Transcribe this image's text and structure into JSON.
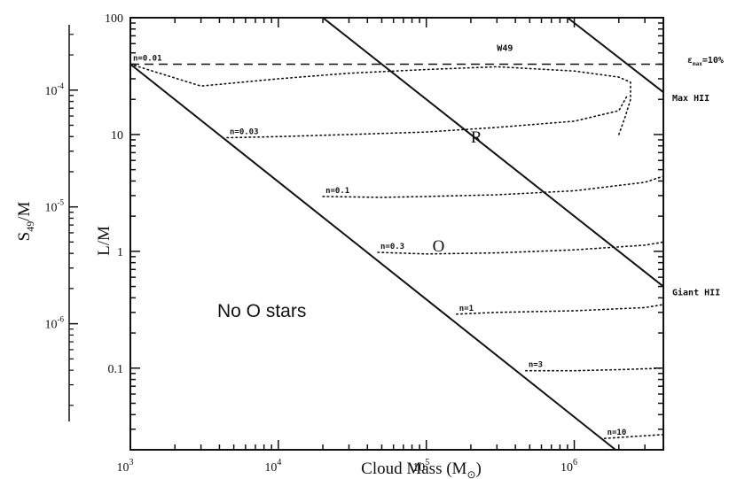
{
  "chart_data": {
    "type": "line",
    "xlabel": "Cloud Mass (M",
    "xlabel_sub": "⊙",
    "xlabel_close": ")",
    "ylabel": "L/M",
    "ylabel_right": "S",
    "ylabel_right_sub": "49",
    "ylabel_right_tail": "/M",
    "x_scale": "log",
    "y_scale": "log",
    "xlim": [
      1000,
      4000000
    ],
    "ylim": [
      0.02,
      100
    ],
    "x_ticks": [
      {
        "value": 1000,
        "base": "10",
        "exp": "3"
      },
      {
        "value": 10000,
        "base": "10",
        "exp": "4"
      },
      {
        "value": 100000,
        "base": "10",
        "exp": "5"
      },
      {
        "value": 1000000,
        "base": "10",
        "exp": "6"
      }
    ],
    "y_ticks": [
      {
        "value": 0.1,
        "label": "0.1"
      },
      {
        "value": 1,
        "label": "1"
      },
      {
        "value": 10,
        "label": "10"
      },
      {
        "value": 100,
        "label": "100"
      }
    ],
    "left_axis_ticks": [
      {
        "value": 1e-06,
        "base": "10",
        "exp": "-6",
        "y_equiv": 0.24
      },
      {
        "value": 1e-05,
        "base": "10",
        "exp": "-5",
        "y_equiv": 2.4
      },
      {
        "value": 0.0001,
        "base": "10",
        "exp": "-4",
        "y_equiv": 24
      }
    ],
    "boundary_lines": [
      {
        "name": "O",
        "points": [
          [
            1000,
            40
          ],
          [
            1900000,
            0.02
          ]
        ],
        "label": "O",
        "label_at": [
          110000,
          1.0
        ]
      },
      {
        "name": "R",
        "points": [
          [
            20000,
            100
          ],
          [
            4000000,
            0.5
          ]
        ],
        "label": "R",
        "label_at": [
          200000,
          8.5
        ]
      },
      {
        "name": "W49",
        "points": [
          [
            900000,
            100
          ],
          [
            4000000,
            23
          ]
        ],
        "label": "W49",
        "label_at": [
          300000,
          52
        ]
      }
    ],
    "efficiency_line": {
      "y": 40,
      "label_epsilon": "ε",
      "label_sub": "max",
      "label_tail": "=10%"
    },
    "density_curves": [
      {
        "label": "n=0.01",
        "x": [
          1000,
          3000,
          10000,
          30000,
          100000,
          300000,
          1000000,
          2000000,
          2400000,
          2400000,
          2200000,
          2000000
        ],
        "y": [
          40,
          26,
          30,
          33.5,
          36,
          38,
          35,
          31,
          28,
          20,
          14,
          10
        ]
      },
      {
        "label": "n=0.03",
        "x": [
          4500,
          10000,
          30000,
          100000,
          300000,
          1000000,
          2000000,
          2300000
        ],
        "y": [
          9.4,
          9.6,
          10,
          10.5,
          11.5,
          13,
          16,
          22
        ]
      },
      {
        "label": "n=0.1",
        "x": [
          20000,
          50000,
          100000,
          300000,
          1000000,
          3000000,
          4000000
        ],
        "y": [
          2.95,
          2.9,
          2.95,
          3.05,
          3.3,
          3.9,
          4.4
        ]
      },
      {
        "label": "n=0.3",
        "x": [
          47000,
          100000,
          300000,
          1000000,
          3000000,
          4000000
        ],
        "y": [
          0.98,
          0.95,
          0.97,
          1.03,
          1.13,
          1.2
        ]
      },
      {
        "label": "n=1",
        "x": [
          160000,
          300000,
          1000000,
          3000000,
          4000000
        ],
        "y": [
          0.29,
          0.3,
          0.31,
          0.33,
          0.35
        ]
      },
      {
        "label": "n=3",
        "x": [
          470000,
          1000000,
          2000000,
          4000000
        ],
        "y": [
          0.095,
          0.095,
          0.097,
          0.1
        ]
      },
      {
        "label": "n=10",
        "x": [
          1600000,
          2500000,
          4000000
        ],
        "y": [
          0.025,
          0.026,
          0.027
        ]
      }
    ],
    "right_labels": [
      {
        "text": "Max HII",
        "y": 23
      },
      {
        "text": "Giant HII",
        "y": 0.5
      }
    ],
    "annotation": "No O stars",
    "grid": false
  }
}
